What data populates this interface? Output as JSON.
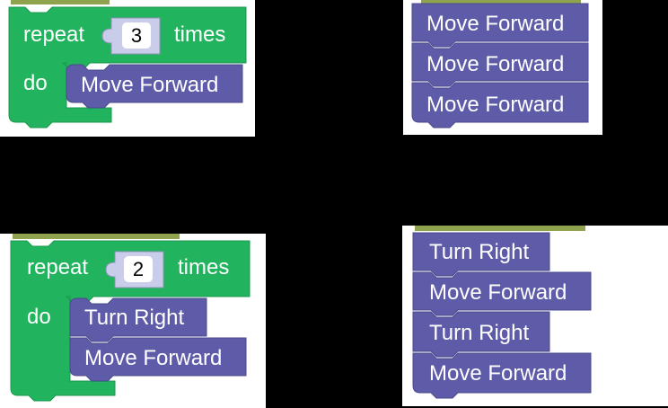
{
  "colors": {
    "loop_green": "#22b35e",
    "loop_green_dark": "#1a9a4f",
    "motion_purple": "#5e5ca9",
    "motion_purple_dark": "#4b4a8c",
    "number_fill": "#c9cdea",
    "hat_olive": "#8fa34e",
    "background": "#000000",
    "panel": "#ffffff"
  },
  "panels": {
    "p1": {
      "repeat_label": "repeat",
      "count": "3",
      "times_label": "times",
      "do_label": "do",
      "inner_blocks": [
        "Move Forward"
      ]
    },
    "p2": {
      "blocks": [
        "Move Forward",
        "Move Forward",
        "Move Forward"
      ]
    },
    "p3": {
      "repeat_label": "repeat",
      "count": "2",
      "times_label": "times",
      "do_label": "do",
      "inner_blocks": [
        "Turn Right",
        "Move Forward"
      ]
    },
    "p4": {
      "blocks": [
        "Turn Right",
        "Move Forward",
        "Turn Right",
        "Move Forward"
      ]
    }
  }
}
